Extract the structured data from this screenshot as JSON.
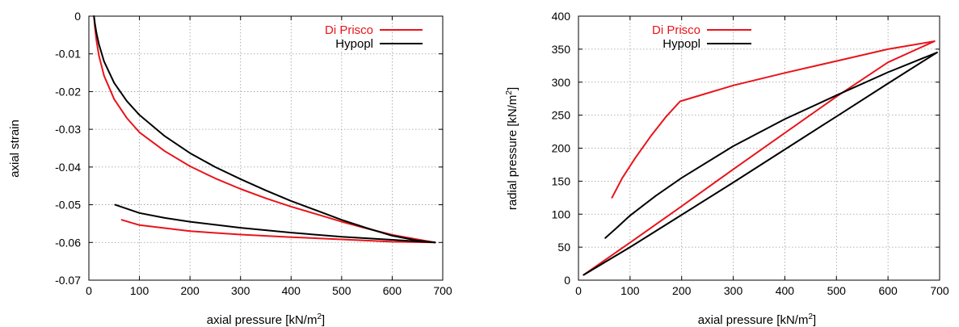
{
  "chart_data": [
    {
      "type": "line",
      "xlabel_main": "axial pressure [kN/m",
      "xlabel_sup": "2",
      "xlabel_close": "]",
      "ylabel": "axial strain",
      "xlim": [
        0,
        700
      ],
      "ylim": [
        -0.07,
        0
      ],
      "xticks": [
        0,
        100,
        200,
        300,
        400,
        500,
        600,
        700
      ],
      "xtick_labels": [
        "0",
        "100",
        "200",
        "300",
        "400",
        "500",
        "600",
        "700"
      ],
      "yticks": [
        -0.07,
        -0.06,
        -0.05,
        -0.04,
        -0.03,
        -0.02,
        -0.01,
        0
      ],
      "ytick_labels": [
        "-0.07",
        "-0.06",
        "-0.05",
        "-0.04",
        "-0.03",
        "-0.02",
        "-0.01",
        "0"
      ],
      "grid": true,
      "legend_position": "top-right",
      "series": [
        {
          "name": "Di Prisco",
          "color": "#e8141a",
          "segments": [
            {
              "x": [
                10,
                12,
                15,
                20,
                30,
                50,
                75,
                100,
                150,
                200,
                250,
                300,
                350,
                400,
                450,
                500,
                550,
                600,
                650,
                685
              ],
              "y": [
                0,
                -0.003,
                -0.0065,
                -0.0105,
                -0.0158,
                -0.022,
                -0.027,
                -0.0308,
                -0.0358,
                -0.0398,
                -0.043,
                -0.0458,
                -0.0483,
                -0.0505,
                -0.0525,
                -0.0545,
                -0.0563,
                -0.058,
                -0.0592,
                -0.06
              ]
            },
            {
              "x": [
                685,
                600,
                500,
                400,
                300,
                200,
                100,
                65
              ],
              "y": [
                -0.06,
                -0.0598,
                -0.0592,
                -0.0586,
                -0.0579,
                -0.057,
                -0.0554,
                -0.054
              ]
            }
          ]
        },
        {
          "name": "Hypopl",
          "color": "#000000",
          "segments": [
            {
              "x": [
                10,
                12,
                15,
                20,
                30,
                50,
                75,
                100,
                150,
                200,
                250,
                300,
                350,
                400,
                450,
                500,
                550,
                600,
                650,
                685
              ],
              "y": [
                0,
                -0.002,
                -0.0045,
                -0.0075,
                -0.012,
                -0.0177,
                -0.0225,
                -0.0262,
                -0.0318,
                -0.0363,
                -0.04,
                -0.0432,
                -0.0462,
                -0.049,
                -0.0515,
                -0.054,
                -0.0562,
                -0.0582,
                -0.0595,
                -0.06
              ]
            },
            {
              "x": [
                685,
                600,
                500,
                400,
                300,
                200,
                150,
                100,
                52
              ],
              "y": [
                -0.06,
                -0.0593,
                -0.0585,
                -0.0574,
                -0.0561,
                -0.0545,
                -0.0535,
                -0.0522,
                -0.05
              ]
            }
          ]
        }
      ]
    },
    {
      "type": "line",
      "xlabel_main": "axial pressure [kN/m",
      "xlabel_sup": "2",
      "xlabel_close": "]",
      "ylabel_main": "radial pressure [kN/m",
      "ylabel_sup": "2",
      "ylabel_close": "]",
      "xlim": [
        0,
        700
      ],
      "ylim": [
        0,
        400
      ],
      "xticks": [
        0,
        100,
        200,
        300,
        400,
        500,
        600,
        700
      ],
      "xtick_labels": [
        "0",
        "100",
        "200",
        "300",
        "400",
        "500",
        "600",
        "700"
      ],
      "yticks": [
        0,
        50,
        100,
        150,
        200,
        250,
        300,
        350,
        400
      ],
      "ytick_labels": [
        "0",
        "50",
        "100",
        "150",
        "200",
        "250",
        "300",
        "350",
        "400"
      ],
      "grid": true,
      "legend_position": "top-left",
      "series": [
        {
          "name": "Di Prisco",
          "color": "#e8141a",
          "segments": [
            {
              "x": [
                10,
                100,
                200,
                300,
                400,
                500,
                600,
                690
              ],
              "y": [
                8,
                57,
                112,
                168,
                223,
                278,
                330,
                362
              ]
            },
            {
              "x": [
                690,
                600,
                500,
                400,
                300,
                197,
                170,
                140,
                110,
                85,
                65
              ],
              "y": [
                362,
                350,
                332,
                314,
                295,
                271,
                248,
                218,
                185,
                155,
                125
              ]
            }
          ]
        },
        {
          "name": "Hypopl",
          "color": "#000000",
          "segments": [
            {
              "x": [
                10,
                100,
                200,
                300,
                400,
                500,
                600,
                695
              ],
              "y": [
                8,
                50,
                99,
                148,
                198,
                248,
                298,
                345
              ]
            },
            {
              "x": [
                695,
                600,
                500,
                400,
                300,
                200,
                150,
                100,
                75,
                52
              ],
              "y": [
                345,
                315,
                280,
                244,
                203,
                155,
                128,
                98,
                80,
                64
              ]
            }
          ]
        }
      ]
    }
  ]
}
